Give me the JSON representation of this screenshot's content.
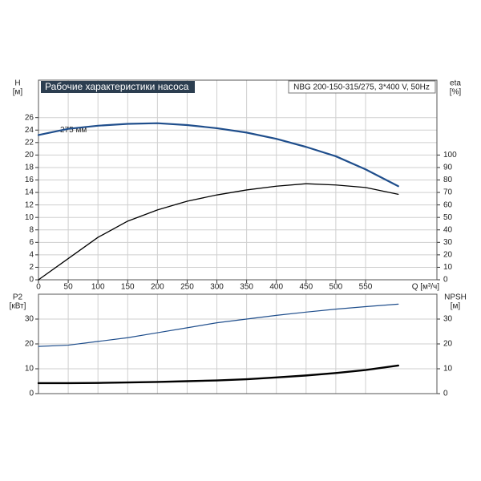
{
  "chart_data": [
    {
      "type": "line",
      "title": "Рабочие характеристики насоса",
      "subtitle": "NBG 200-150-315/275, 3*400 V, 50Hz",
      "y_label": "H",
      "y_unit": "[м]",
      "y2_label": "eta",
      "y2_unit": "[%]",
      "x_label": "Q [м³/ч]",
      "annotation": "275 мм",
      "x": [
        0,
        50,
        100,
        150,
        200,
        250,
        300,
        350,
        400,
        450,
        500,
        550,
        605
      ],
      "series": [
        {
          "color": "#1f4e8c",
          "linewidth": 2.2,
          "axis": "y",
          "values": [
            23.2,
            24.2,
            24.7,
            25.0,
            25.1,
            24.8,
            24.3,
            23.6,
            22.6,
            21.3,
            19.8,
            17.7,
            15.0
          ]
        },
        {
          "color": "#000000",
          "linewidth": 1.3,
          "axis": "y2",
          "values": [
            0,
            17,
            34,
            47,
            56,
            63,
            68,
            72,
            75,
            77,
            76,
            74,
            68.5
          ]
        }
      ],
      "xlim": [
        0,
        670
      ],
      "xticks": [
        0,
        50,
        100,
        150,
        200,
        250,
        300,
        350,
        400,
        450,
        500,
        550
      ],
      "ylim": [
        0,
        32
      ],
      "yticks": [
        0,
        2,
        4,
        6,
        8,
        10,
        12,
        14,
        16,
        18,
        20,
        22,
        24,
        26
      ],
      "y2lim": [
        0,
        160
      ],
      "y2ticks": [
        0,
        10,
        20,
        30,
        40,
        50,
        60,
        70,
        80,
        90,
        100
      ],
      "grid": true
    },
    {
      "type": "line",
      "y_label": "P2",
      "y_unit": "[кВт]",
      "y2_label": "NPSH",
      "y2_unit": "[м]",
      "x": [
        0,
        50,
        100,
        150,
        200,
        250,
        300,
        350,
        400,
        450,
        500,
        550,
        605
      ],
      "series": [
        {
          "color": "#1f4e8c",
          "linewidth": 1.2,
          "axis": "y",
          "values": [
            19,
            19.5,
            21,
            22.5,
            24.5,
            26.5,
            28.5,
            30,
            31.5,
            32.8,
            34,
            35,
            36
          ]
        },
        {
          "color": "#000000",
          "linewidth": 2.4,
          "axis": "y2",
          "values": [
            4.2,
            4.2,
            4.3,
            4.5,
            4.7,
            5.0,
            5.3,
            5.8,
            6.5,
            7.3,
            8.3,
            9.5,
            11.3
          ]
        }
      ],
      "xlim": [
        0,
        670
      ],
      "ylim": [
        0,
        40
      ],
      "yticks": [
        0,
        10,
        20,
        30
      ],
      "y2lim": [
        0,
        40
      ],
      "y2ticks": [
        0,
        10,
        20,
        30
      ],
      "grid": true
    }
  ]
}
